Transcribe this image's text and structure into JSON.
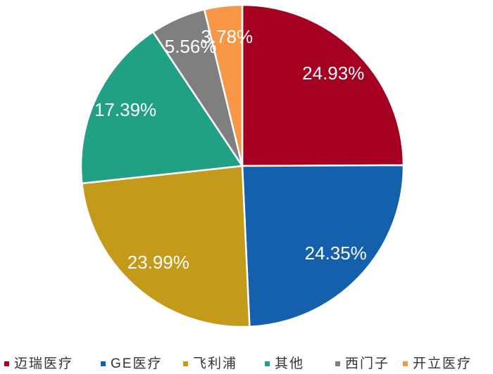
{
  "chart_data": {
    "type": "pie",
    "categories": [
      "迈瑞医疗",
      "GE医疗",
      "飞利浦",
      "其他",
      "西门子",
      "开立医疗"
    ],
    "values": [
      24.93,
      24.35,
      23.99,
      17.39,
      5.56,
      3.78
    ],
    "value_labels": [
      "24.93%",
      "24.35%",
      "23.99%",
      "17.39%",
      "5.56%",
      "3.78%"
    ],
    "colors": [
      "#a50021",
      "#1560ad",
      "#c49a1a",
      "#21a085",
      "#7f7f7f",
      "#f79646"
    ],
    "legend": "bottom"
  }
}
